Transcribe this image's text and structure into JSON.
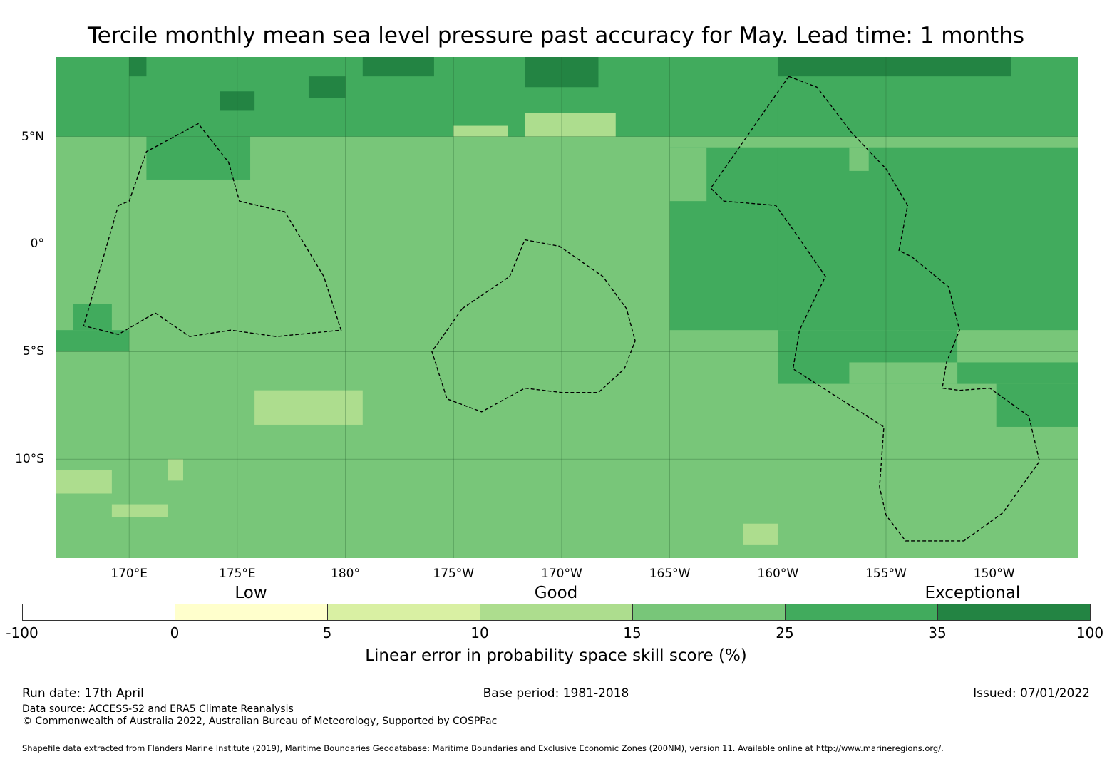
{
  "title": "Tercile monthly mean sea level pressure past accuracy for May. Lead time: 1 months",
  "map": {
    "lon_range": [
      -193.4,
      -146.1
    ],
    "lat_range": [
      -14.6,
      8.7
    ],
    "x_ticks": [
      {
        "lon": -190,
        "label": "170°E"
      },
      {
        "lon": -185,
        "label": "175°E"
      },
      {
        "lon": -180,
        "label": "180°"
      },
      {
        "lon": -175,
        "label": "175°W"
      },
      {
        "lon": -170,
        "label": "170°W"
      },
      {
        "lon": -165,
        "label": "165°W"
      },
      {
        "lon": -160,
        "label": "160°W"
      },
      {
        "lon": -155,
        "label": "155°W"
      },
      {
        "lon": -150,
        "label": "150°W"
      }
    ],
    "y_ticks": [
      {
        "lat": 5,
        "label": "5°N"
      },
      {
        "lat": 0,
        "label": "0°"
      },
      {
        "lat": -5,
        "label": "5°S"
      },
      {
        "lat": -10,
        "label": "10°S"
      }
    ],
    "base_color": "#78c679",
    "regions": [
      {
        "level": 25,
        "color": "#41ab5d",
        "lon": [
          -193.4,
          -146.1
        ],
        "lat": [
          5.0,
          8.7
        ]
      },
      {
        "level": 25,
        "color": "#41ab5d",
        "lon": [
          -165.0,
          -146.1
        ],
        "lat": [
          -4.0,
          4.5
        ]
      },
      {
        "level": 25,
        "color": "#41ab5d",
        "lon": [
          -160.0,
          -146.1
        ],
        "lat": [
          -6.5,
          -4.0
        ]
      },
      {
        "level": 25,
        "color": "#41ab5d",
        "lon": [
          -189.2,
          -184.4
        ],
        "lat": [
          3.0,
          5.0
        ]
      },
      {
        "level": 25,
        "color": "#41ab5d",
        "lon": [
          -193.4,
          -190.0
        ],
        "lat": [
          -5.0,
          -4.0
        ]
      },
      {
        "level": 25,
        "color": "#41ab5d",
        "lon": [
          -192.6,
          -190.8
        ],
        "lat": [
          -4.0,
          -2.8
        ]
      },
      {
        "level": 25,
        "color": "#41ab5d",
        "lon": [
          -149.9,
          -146.1
        ],
        "lat": [
          -8.5,
          -6.5
        ]
      },
      {
        "level": 15,
        "color": "#78c679",
        "lon": [
          -165.0,
          -163.3
        ],
        "lat": [
          2.0,
          4.5
        ]
      },
      {
        "level": 15,
        "color": "#78c679",
        "lon": [
          -156.7,
          -155.8
        ],
        "lat": [
          3.4,
          4.5
        ]
      },
      {
        "level": 15,
        "color": "#78c679",
        "lon": [
          -156.7,
          -151.7
        ],
        "lat": [
          -6.5,
          -5.5
        ]
      },
      {
        "level": 15,
        "color": "#78c679",
        "lon": [
          -151.7,
          -146.1
        ],
        "lat": [
          -5.5,
          -4.0
        ]
      },
      {
        "level": 35,
        "color": "#238443",
        "lon": [
          -160.0,
          -149.2
        ],
        "lat": [
          7.8,
          8.7
        ]
      },
      {
        "level": 35,
        "color": "#238443",
        "lon": [
          -179.2,
          -175.9
        ],
        "lat": [
          7.8,
          8.7
        ]
      },
      {
        "level": 35,
        "color": "#238443",
        "lon": [
          -171.7,
          -168.3
        ],
        "lat": [
          7.3,
          8.7
        ]
      },
      {
        "level": 35,
        "color": "#238443",
        "lon": [
          -190.0,
          -189.2
        ],
        "lat": [
          7.8,
          8.7
        ]
      },
      {
        "level": 35,
        "color": "#238443",
        "lon": [
          -185.8,
          -184.2
        ],
        "lat": [
          6.2,
          7.1
        ]
      },
      {
        "level": 35,
        "color": "#238443",
        "lon": [
          -181.7,
          -180.0
        ],
        "lat": [
          6.8,
          7.8
        ]
      },
      {
        "level": 10,
        "color": "#addd8e",
        "lon": [
          -184.2,
          -179.2
        ],
        "lat": [
          -8.4,
          -6.8
        ]
      },
      {
        "level": 10,
        "color": "#addd8e",
        "lon": [
          -193.4,
          -190.8
        ],
        "lat": [
          -11.6,
          -10.5
        ]
      },
      {
        "level": 10,
        "color": "#addd8e",
        "lon": [
          -190.8,
          -188.2
        ],
        "lat": [
          -12.7,
          -12.1
        ]
      },
      {
        "level": 10,
        "color": "#addd8e",
        "lon": [
          -188.2,
          -187.5
        ],
        "lat": [
          -11.0,
          -10.0
        ]
      },
      {
        "level": 10,
        "color": "#addd8e",
        "lon": [
          -161.6,
          -160.0
        ],
        "lat": [
          -14.0,
          -13.0
        ]
      },
      {
        "level": 10,
        "color": "#addd8e",
        "lon": [
          -175.0,
          -172.5
        ],
        "lat": [
          5.0,
          5.5
        ]
      },
      {
        "level": 10,
        "color": "#addd8e",
        "lon": [
          -171.7,
          -167.5
        ],
        "lat": [
          5.0,
          6.1
        ]
      }
    ],
    "eez_boundaries": [
      {
        "name": "west",
        "points": [
          [
            -190.5,
            1.8
          ],
          [
            -190.0,
            2.0
          ],
          [
            -189.2,
            4.3
          ],
          [
            -186.8,
            5.6
          ],
          [
            -185.4,
            3.8
          ],
          [
            -184.9,
            2.0
          ],
          [
            -182.8,
            1.5
          ],
          [
            -181.0,
            -1.5
          ],
          [
            -180.2,
            -4.0
          ],
          [
            -183.2,
            -4.3
          ],
          [
            -185.3,
            -4.0
          ],
          [
            -187.2,
            -4.3
          ],
          [
            -188.8,
            -3.2
          ],
          [
            -190.5,
            -4.2
          ],
          [
            -192.1,
            -3.8
          ],
          [
            -190.5,
            1.8
          ]
        ]
      },
      {
        "name": "central",
        "points": [
          [
            -174.6,
            -3.0
          ],
          [
            -172.4,
            -1.5
          ],
          [
            -171.7,
            0.2
          ],
          [
            -170.1,
            -0.1
          ],
          [
            -168.1,
            -1.5
          ],
          [
            -167.0,
            -3.0
          ],
          [
            -166.6,
            -4.5
          ],
          [
            -167.1,
            -5.8
          ],
          [
            -168.3,
            -6.9
          ],
          [
            -170.0,
            -6.9
          ],
          [
            -171.7,
            -6.7
          ],
          [
            -173.7,
            -7.8
          ],
          [
            -175.3,
            -7.2
          ],
          [
            -176.0,
            -5.0
          ],
          [
            -174.6,
            -3.0
          ]
        ]
      },
      {
        "name": "east",
        "points": [
          [
            -159.5,
            7.8
          ],
          [
            -158.2,
            7.3
          ],
          [
            -156.6,
            5.2
          ],
          [
            -155.0,
            3.5
          ],
          [
            -154.0,
            1.8
          ],
          [
            -154.4,
            -0.3
          ],
          [
            -153.8,
            -0.6
          ],
          [
            -152.1,
            -2.0
          ],
          [
            -151.6,
            -4.0
          ],
          [
            -152.2,
            -5.5
          ],
          [
            -152.4,
            -6.7
          ],
          [
            -151.6,
            -6.8
          ],
          [
            -150.2,
            -6.7
          ],
          [
            -148.4,
            -8.0
          ],
          [
            -147.9,
            -10.1
          ],
          [
            -149.6,
            -12.5
          ],
          [
            -151.4,
            -13.8
          ],
          [
            -154.1,
            -13.8
          ],
          [
            -155.0,
            -12.6
          ],
          [
            -155.3,
            -11.3
          ],
          [
            -155.1,
            -8.5
          ],
          [
            -159.3,
            -5.8
          ],
          [
            -159.0,
            -4.0
          ],
          [
            -157.8,
            -1.5
          ],
          [
            -158.9,
            0.1
          ],
          [
            -160.1,
            1.8
          ],
          [
            -162.5,
            2.0
          ],
          [
            -163.1,
            2.6
          ],
          [
            -159.5,
            7.8
          ]
        ]
      }
    ]
  },
  "legend": {
    "category_labels": [
      {
        "text": "Low",
        "at": 2.5
      },
      {
        "text": "Good",
        "at": 12.5
      },
      {
        "text": "Exceptional",
        "at": 50
      }
    ],
    "bins": [
      {
        "from": "-100",
        "to": "0",
        "color": "#ffffff"
      },
      {
        "from": "0",
        "to": "5",
        "color": "#ffffcc"
      },
      {
        "from": "5",
        "to": "10",
        "color": "#d9f0a3"
      },
      {
        "from": "10",
        "to": "15",
        "color": "#addd8e"
      },
      {
        "from": "15",
        "to": "25",
        "color": "#78c679"
      },
      {
        "from": "25",
        "to": "35",
        "color": "#41ab5d"
      },
      {
        "from": "35",
        "to": "100",
        "color": "#238443"
      }
    ],
    "tick_labels": [
      "-100",
      "0",
      "5",
      "10",
      "15",
      "25",
      "35",
      "100"
    ],
    "label": "Linear error in probability space skill score (%)"
  },
  "footer": {
    "run_date": "Run date: 17th April",
    "base_period": "Base period: 1981-2018",
    "issued": "Issued: 07/01/2022",
    "data_source": "Data source: ACCESS-S2 and ERA5 Climate Reanalysis",
    "copyright": "© Commonwealth of Australia 2022, Australian Bureau of Meteorology, Supported by COSPPac",
    "shapefile_credit": "Shapefile data extracted from Flanders Marine Institute (2019), Maritime Boundaries Geodatabase: Maritime Boundaries and Exclusive Economic Zones (200NM), version 11. Available online at http://www.marineregions.org/."
  }
}
